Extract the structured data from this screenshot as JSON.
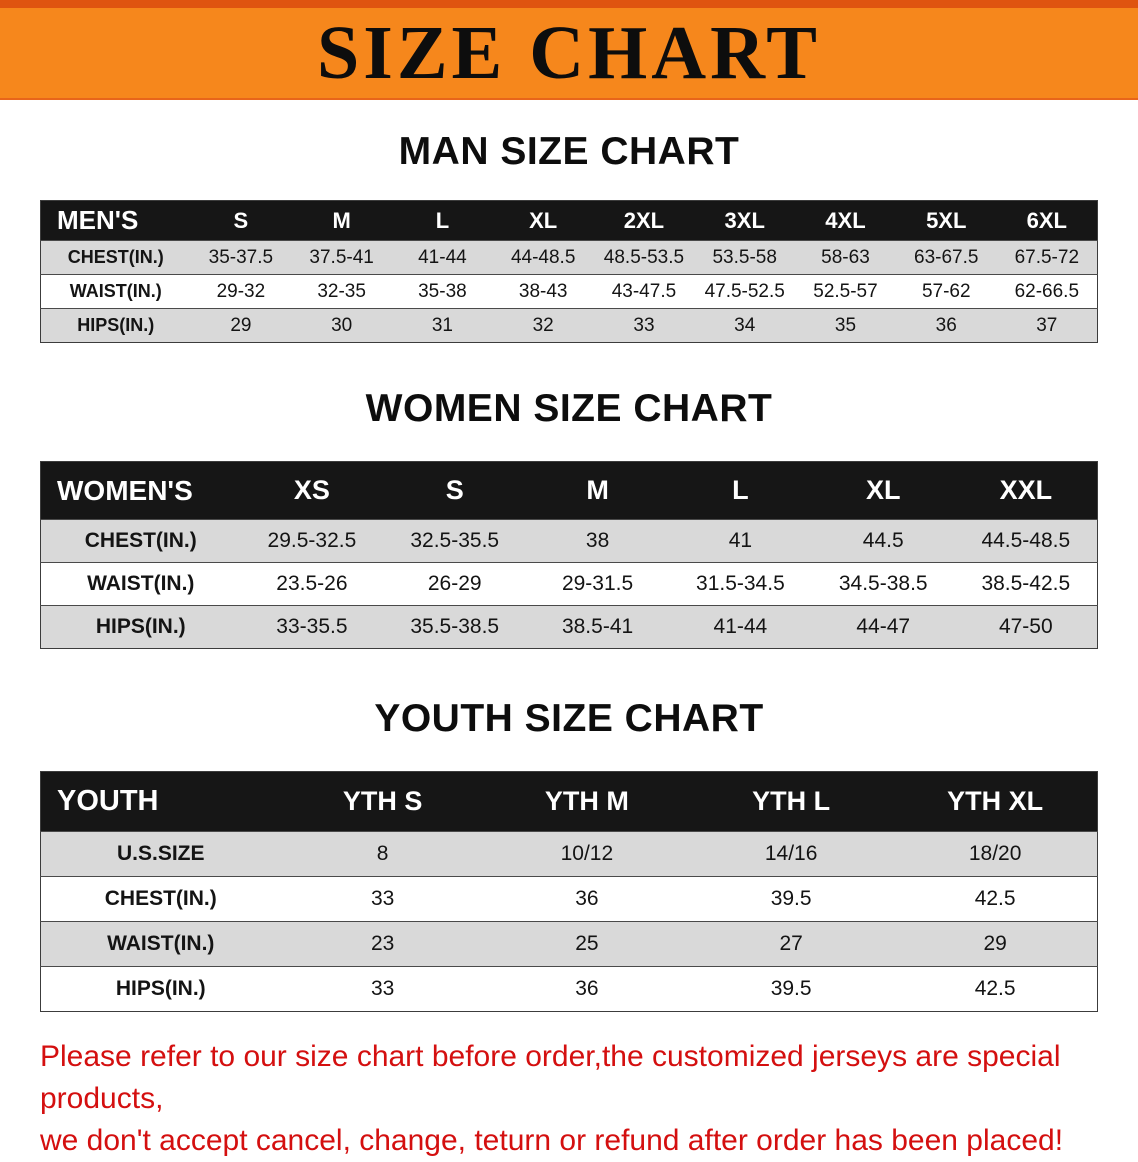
{
  "banner": {
    "title": "SIZE CHART",
    "bg_color": "#f6871c"
  },
  "sections": [
    {
      "id": "men",
      "heading": "MAN SIZE CHART",
      "table": {
        "header": [
          "MEN'S",
          "S",
          "M",
          "L",
          "XL",
          "2XL",
          "3XL",
          "4XL",
          "5XL",
          "6XL"
        ],
        "rows": [
          {
            "label": "CHEST(IN.)",
            "values": [
              "35-37.5",
              "37.5-41",
              "41-44",
              "44-48.5",
              "48.5-53.5",
              "53.5-58",
              "58-63",
              "63-67.5",
              "67.5-72"
            ]
          },
          {
            "label": "WAIST(IN.)",
            "values": [
              "29-32",
              "32-35",
              "35-38",
              "38-43",
              "43-47.5",
              "47.5-52.5",
              "52.5-57",
              "57-62",
              "62-66.5"
            ]
          },
          {
            "label": "HIPS(IN.)",
            "values": [
              "29",
              "30",
              "31",
              "32",
              "33",
              "34",
              "35",
              "36",
              "37"
            ]
          }
        ]
      }
    },
    {
      "id": "women",
      "heading": "WOMEN SIZE CHART",
      "table": {
        "header": [
          "WOMEN'S",
          "XS",
          "S",
          "M",
          "L",
          "XL",
          "XXL"
        ],
        "rows": [
          {
            "label": "CHEST(IN.)",
            "values": [
              "29.5-32.5",
              "32.5-35.5",
              "38",
              "41",
              "44.5",
              "44.5-48.5"
            ]
          },
          {
            "label": "WAIST(IN.)",
            "values": [
              "23.5-26",
              "26-29",
              "29-31.5",
              "31.5-34.5",
              "34.5-38.5",
              "38.5-42.5"
            ]
          },
          {
            "label": "HIPS(IN.)",
            "values": [
              "33-35.5",
              "35.5-38.5",
              "38.5-41",
              "41-44",
              "44-47",
              "47-50"
            ]
          }
        ]
      }
    },
    {
      "id": "youth",
      "heading": "YOUTH SIZE CHART",
      "table": {
        "header": [
          "YOUTH",
          "YTH S",
          "YTH M",
          "YTH L",
          "YTH XL"
        ],
        "rows": [
          {
            "label": "U.S.SIZE",
            "values": [
              "8",
              "10/12",
              "14/16",
              "18/20"
            ]
          },
          {
            "label": "CHEST(IN.)",
            "values": [
              "33",
              "36",
              "39.5",
              "42.5"
            ]
          },
          {
            "label": "WAIST(IN.)",
            "values": [
              "23",
              "25",
              "27",
              "29"
            ]
          },
          {
            "label": "HIPS(IN.)",
            "values": [
              "33",
              "36",
              "39.5",
              "42.5"
            ]
          }
        ]
      }
    }
  ],
  "disclaimer": {
    "line1": "Please refer to our size chart before order,the customized jerseys are special products,",
    "line2": "we don't accept cancel, change, teturn or refund after order has been placed!",
    "color": "#d40f0f"
  }
}
